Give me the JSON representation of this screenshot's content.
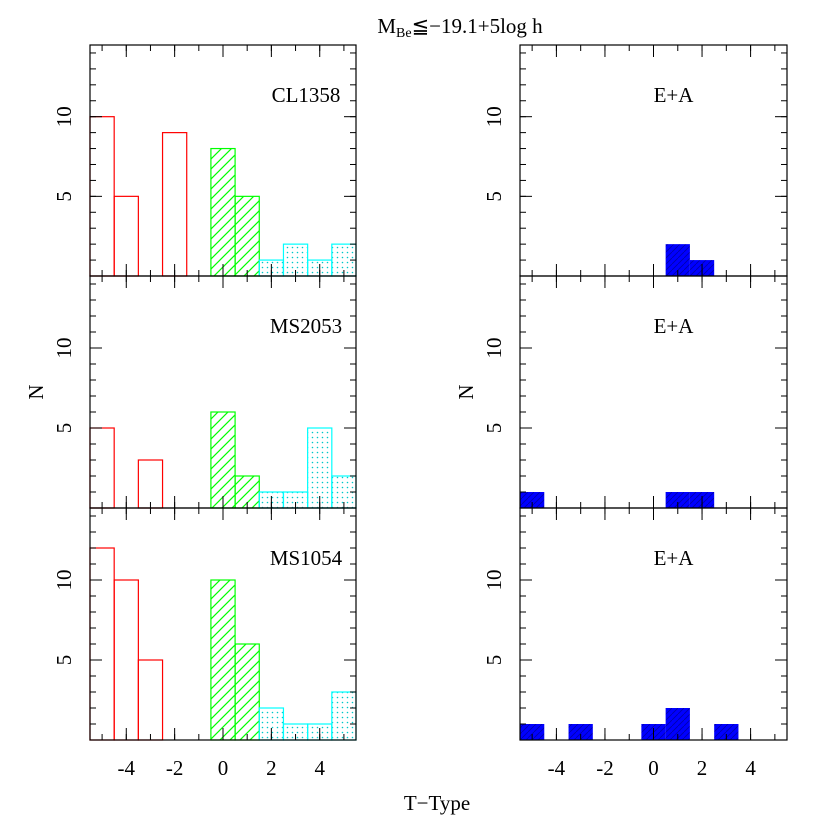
{
  "title": {
    "main": "M",
    "sub": "Be",
    "rest": "≦−19.1+5log h"
  },
  "xlabel": "T−Type",
  "chart_data": [
    {
      "type": "histogram",
      "label": "CL1358",
      "bins": [
        -5.5,
        -4.5,
        -3.5,
        -2.5,
        -1.5,
        -0.5,
        0.5,
        1.5,
        2.5,
        3.5,
        4.5,
        5.5
      ],
      "xlim": [
        -5.5,
        5.5
      ],
      "ylim": [
        0,
        14.5
      ],
      "xticks": [
        -4,
        -2,
        0,
        2,
        4
      ],
      "yticks": [
        5,
        10
      ],
      "series": [
        {
          "color": "#ff0000",
          "style": "outline",
          "values": [
            10,
            5,
            0,
            9,
            0,
            null,
            null,
            null,
            null,
            null,
            null
          ]
        },
        {
          "color": "#00ff00",
          "style": "hatch",
          "values": [
            null,
            null,
            null,
            null,
            null,
            8,
            5,
            null,
            null,
            null,
            null
          ]
        },
        {
          "color": "#00ffff",
          "style": "dots",
          "values": [
            null,
            null,
            null,
            null,
            null,
            null,
            null,
            1,
            2,
            1,
            2
          ]
        }
      ]
    },
    {
      "type": "histogram",
      "label": "E+A",
      "bins": [
        -5.5,
        -4.5,
        -3.5,
        -2.5,
        -1.5,
        -0.5,
        0.5,
        1.5,
        2.5,
        3.5,
        4.5,
        5.5
      ],
      "xlim": [
        -5.5,
        5.5
      ],
      "ylim": [
        0,
        14.5
      ],
      "xticks": [
        -4,
        -2,
        0,
        2,
        4
      ],
      "yticks": [
        5,
        10
      ],
      "series": [
        {
          "color": "#0000ff",
          "style": "solid",
          "values": [
            0,
            0,
            0,
            0,
            0,
            0,
            2,
            1,
            0,
            0,
            0
          ]
        }
      ]
    },
    {
      "type": "histogram",
      "label": "MS2053",
      "ylabel": "N",
      "bins": [
        -5.5,
        -4.5,
        -3.5,
        -2.5,
        -1.5,
        -0.5,
        0.5,
        1.5,
        2.5,
        3.5,
        4.5,
        5.5
      ],
      "xlim": [
        -5.5,
        5.5
      ],
      "ylim": [
        0,
        14.5
      ],
      "xticks": [
        -4,
        -2,
        0,
        2,
        4
      ],
      "yticks": [
        5,
        10
      ],
      "series": [
        {
          "color": "#ff0000",
          "style": "outline",
          "values": [
            5,
            0,
            3,
            0,
            0,
            null,
            null,
            null,
            null,
            null,
            null
          ]
        },
        {
          "color": "#00ff00",
          "style": "hatch",
          "values": [
            null,
            null,
            null,
            null,
            null,
            6,
            2,
            null,
            null,
            null,
            null
          ]
        },
        {
          "color": "#00ffff",
          "style": "dots",
          "values": [
            null,
            null,
            null,
            null,
            null,
            null,
            null,
            1,
            1,
            5,
            2
          ]
        }
      ]
    },
    {
      "type": "histogram",
      "label": "E+A",
      "ylabel": "N",
      "bins": [
        -5.5,
        -4.5,
        -3.5,
        -2.5,
        -1.5,
        -0.5,
        0.5,
        1.5,
        2.5,
        3.5,
        4.5,
        5.5
      ],
      "xlim": [
        -5.5,
        5.5
      ],
      "ylim": [
        0,
        14.5
      ],
      "xticks": [
        -4,
        -2,
        0,
        2,
        4
      ],
      "yticks": [
        5,
        10
      ],
      "series": [
        {
          "color": "#0000ff",
          "style": "solid",
          "values": [
            1,
            0,
            0,
            0,
            0,
            0,
            1,
            1,
            0,
            0,
            0
          ]
        }
      ]
    },
    {
      "type": "histogram",
      "label": "MS1054",
      "bins": [
        -5.5,
        -4.5,
        -3.5,
        -2.5,
        -1.5,
        -0.5,
        0.5,
        1.5,
        2.5,
        3.5,
        4.5,
        5.5
      ],
      "xlim": [
        -5.5,
        5.5
      ],
      "ylim": [
        0,
        14.5
      ],
      "xticks": [
        -4,
        -2,
        0,
        2,
        4
      ],
      "yticks": [
        5,
        10
      ],
      "series": [
        {
          "color": "#ff0000",
          "style": "outline",
          "values": [
            12,
            10,
            5,
            0,
            0,
            null,
            null,
            null,
            null,
            null,
            null
          ]
        },
        {
          "color": "#00ff00",
          "style": "hatch",
          "values": [
            null,
            null,
            null,
            null,
            null,
            10,
            6,
            null,
            null,
            null,
            null
          ]
        },
        {
          "color": "#00ffff",
          "style": "dots",
          "values": [
            null,
            null,
            null,
            null,
            null,
            null,
            null,
            2,
            1,
            1,
            3
          ]
        }
      ]
    },
    {
      "type": "histogram",
      "label": "E+A",
      "bins": [
        -5.5,
        -4.5,
        -3.5,
        -2.5,
        -1.5,
        -0.5,
        0.5,
        1.5,
        2.5,
        3.5,
        4.5,
        5.5
      ],
      "xlim": [
        -5.5,
        5.5
      ],
      "ylim": [
        0,
        14.5
      ],
      "xticks": [
        -4,
        -2,
        0,
        2,
        4
      ],
      "yticks": [
        5,
        10
      ],
      "series": [
        {
          "color": "#0000ff",
          "style": "solid",
          "values": [
            1,
            0,
            1,
            0,
            0,
            1,
            2,
            0,
            1,
            0,
            0
          ]
        }
      ]
    }
  ]
}
